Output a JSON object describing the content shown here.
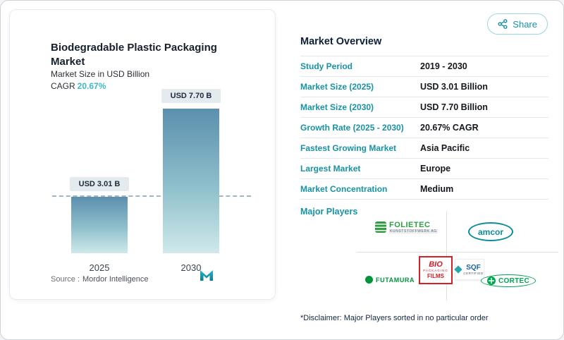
{
  "share": {
    "label": "Share"
  },
  "chart_card": {
    "title": "Biodegradable Plastic Packaging Market",
    "subtitle": "Market Size in USD Billion",
    "cagr_label": "CAGR",
    "cagr_value": "20.67%",
    "source_label": "Source :",
    "source_value": "Mordor Intelligence"
  },
  "chart_data": {
    "type": "bar",
    "title": "Biodegradable Plastic Packaging Market",
    "subtitle": "Market Size in USD Billion",
    "categories": [
      "2025",
      "2030"
    ],
    "values": [
      3.01,
      7.7
    ],
    "bar_labels": [
      "USD 3.01 B",
      "USD 7.70 B"
    ],
    "cagr": "20.67%",
    "xlabel": "",
    "ylabel": "Market Size in USD Billion",
    "ylim": [
      0,
      8
    ],
    "grid": false,
    "legend": "none",
    "annotations": [
      "dashed reference line at 3.01 level"
    ]
  },
  "overview": {
    "title": "Market Overview",
    "rows": [
      {
        "label": "Study Period",
        "value": "2019 - 2030"
      },
      {
        "label": "Market Size (2025)",
        "value": "USD 3.01 Billion"
      },
      {
        "label": "Market Size (2030)",
        "value": "USD 7.70 Billion"
      },
      {
        "label": "Growth Rate (2025 - 2030)",
        "value": "20.67% CAGR"
      },
      {
        "label": "Fastest Growing Market",
        "value": "Asia Pacific"
      },
      {
        "label": "Largest Market",
        "value": "Europe"
      },
      {
        "label": "Market Concentration",
        "value": "Medium"
      }
    ],
    "major_players_label": "Major Players",
    "players": [
      {
        "name": "FOLIETEC",
        "sub": "KUNSTSTOFFWERK AG"
      },
      {
        "name": "amcor"
      },
      {
        "name": "FUTAMURA"
      },
      {
        "name": "BIO",
        "line2": "PACKAGING",
        "line3": "FILMS"
      },
      {
        "name": "SQF",
        "sub": "CERTIFIED"
      },
      {
        "name": "CORTEC"
      }
    ],
    "disclaimer": "*Disclaimer: Major Players sorted in no particular order"
  },
  "colors": {
    "accent_teal": "#1793a5",
    "cagr_teal": "#3fb6c6",
    "dark_navy": "#0e2038",
    "bar_top": "#5b90ae",
    "bar_bottom": "#cfe9ea",
    "label_box_bg": "#e4ebef",
    "dash": "#9db8c4",
    "divider": "#e4e9ee",
    "folietec_green": "#2f9e41",
    "amcor_teal": "#0c8d99",
    "futamura_green": "#00953b",
    "bio_red": "#d61f26",
    "sqf_blue": "#1565a7",
    "cortec_green": "#00a551"
  }
}
